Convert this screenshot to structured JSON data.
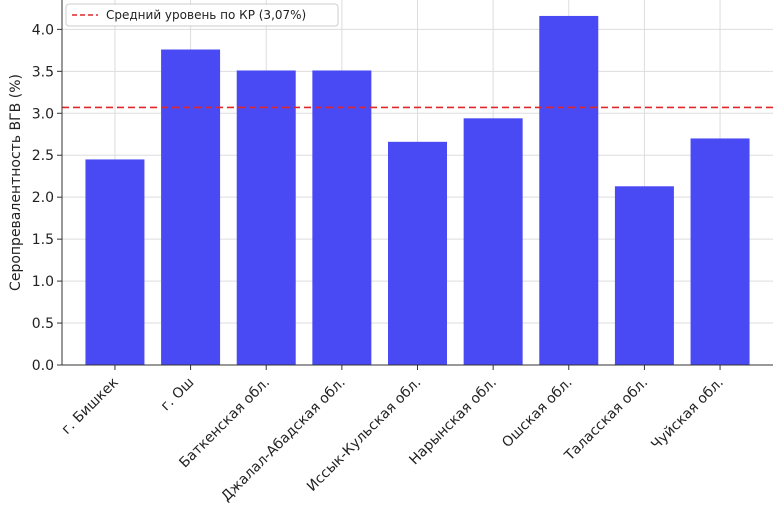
{
  "chart_data": {
    "type": "bar",
    "categories": [
      "г. Бишкек",
      "г. Ош",
      "Баткенская обл.",
      "Джалал-Абадская обл.",
      "Иссык-Кульская обл.",
      "Нарынская обл.",
      "Ошская обл.",
      "Таласская обл.",
      "Чуйская обл."
    ],
    "values": [
      2.45,
      3.76,
      3.51,
      3.51,
      2.66,
      2.94,
      4.16,
      2.13,
      2.7
    ],
    "ylabel": "Серопревалентность ВГВ (%)",
    "xlabel": "",
    "ylim": [
      0,
      4.35
    ],
    "yticks": [
      0.0,
      0.5,
      1.0,
      1.5,
      2.0,
      2.5,
      3.0,
      3.5,
      4.0
    ],
    "ytick_labels": [
      "0.0",
      "0.5",
      "1.0",
      "1.5",
      "2.0",
      "2.5",
      "3.0",
      "3.5",
      "4.0"
    ],
    "bar_color": "#4a4af5",
    "reference_line": {
      "value": 3.07,
      "label": "Средний уровень по КР (3,07%)",
      "color": "#e0282a",
      "style": "dashed"
    },
    "legend": {
      "placement": "top-left",
      "entries": [
        "Средний уровень по КР (3,07%)"
      ]
    },
    "grid": true
  }
}
